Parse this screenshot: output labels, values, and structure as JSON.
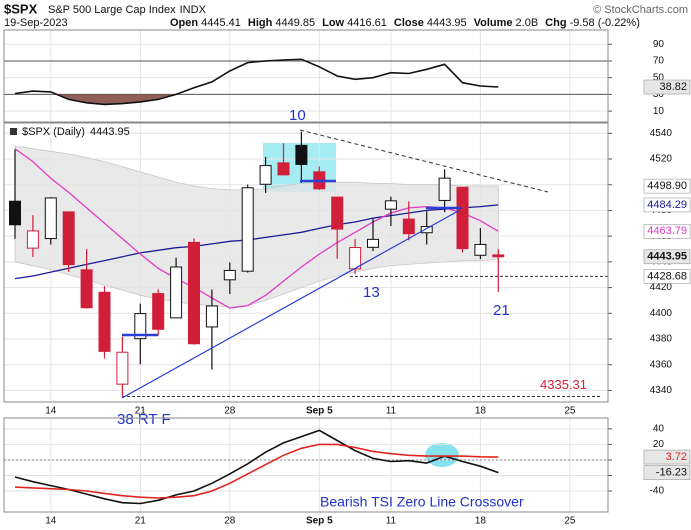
{
  "header": {
    "symbol": "$SPX",
    "name": "S&P 500 Large Cap Index",
    "exchange": "INDX",
    "date": "19-Sep-2023",
    "copyright": "© StockCharts.com",
    "quote": [
      {
        "label": "Open",
        "value": "4445.41"
      },
      {
        "label": "High",
        "value": "4449.85"
      },
      {
        "label": "Low",
        "value": "4416.61"
      },
      {
        "label": "Close",
        "value": "4443.95"
      },
      {
        "label": "Volume",
        "value": "2.0B"
      },
      {
        "label": "Chg",
        "value": "-9.58 (-0.22%)"
      }
    ]
  },
  "chart_data": [
    {
      "type": "line",
      "ylim": [
        -3,
        107
      ],
      "yticks": [
        90,
        70,
        50,
        30,
        10
      ],
      "reference_lines": [
        70,
        30
      ],
      "fills": {
        "below": 30,
        "below_color": "#8f5f58",
        "above": 70,
        "above_color": "#9aa8b4"
      },
      "series": [
        {
          "color": "#111111",
          "values": [
            31,
            34,
            33,
            24,
            20,
            18,
            19,
            21,
            24,
            30,
            38,
            45,
            58,
            68,
            70,
            71,
            72,
            63,
            52,
            48,
            50,
            56,
            55,
            60,
            66,
            44,
            40,
            38.82,
            null,
            null,
            null,
            null,
            null,
            null
          ]
        }
      ]
    },
    {
      "type": "candlestick",
      "title": "$SPX (Daily)",
      "ylim": [
        4331,
        4548
      ],
      "yticks": [
        4540,
        4520,
        4500,
        4480,
        4460,
        4440,
        4420,
        4400,
        4380,
        4360,
        4340
      ],
      "categories": [
        null,
        null,
        "14",
        null,
        null,
        null,
        null,
        "21",
        null,
        null,
        null,
        null,
        "28",
        null,
        null,
        null,
        null,
        "Sep 5",
        null,
        null,
        null,
        "11",
        null,
        null,
        null,
        null,
        "18",
        null,
        null,
        null,
        null,
        "25",
        null,
        null
      ],
      "up_color": "#111111",
      "down_color": "#d11f3a",
      "open": [
        4487.16,
        4450.69,
        4458.13,
        4478.87,
        4433.79,
        4416.32,
        4344.88,
        4380.28,
        4415.33,
        4396.44,
        4455.16,
        4389.38,
        4426.03,
        4432.75,
        4500.34,
        4517.01,
        4530.6,
        4510.06,
        4490.35,
        4434.55,
        4451.3,
        4480.98,
        4473.27,
        4462.65,
        4487.78,
        4497.98,
        4445.13,
        4445.41,
        null,
        null,
        null,
        null,
        null,
        null
      ],
      "high": [
        4527.37,
        4476.23,
        4490.33,
        4478.87,
        4449.95,
        4421.17,
        4381.82,
        4407.55,
        4418.59,
        4443.18,
        4458.3,
        4418.46,
        4439.56,
        4500.14,
        4521.65,
        4532.26,
        4541.25,
        4514.29,
        4490.35,
        4457.81,
        4473.53,
        4490.77,
        4487.11,
        4479.39,
        4511.99,
        4497.98,
        4466.36,
        4449.85,
        null,
        null,
        null,
        null,
        null,
        null
      ],
      "low": [
        4457.92,
        4443.98,
        4453.44,
        4432.19,
        4403.55,
        4364.8,
        4335.31,
        4360.3,
        4382.77,
        4396.44,
        4375.55,
        4356.29,
        4414.98,
        4431.68,
        4493.59,
        4507.39,
        4501.35,
        4496.01,
        4442.38,
        4430.46,
        4448.38,
        4467.89,
        4456.83,
        4453.52,
        4478.69,
        4447.21,
        4442.11,
        4416.61,
        null,
        null,
        null,
        null,
        null,
        null
      ],
      "close": [
        4468.83,
        4464.05,
        4489.72,
        4437.86,
        4404.33,
        4370.36,
        4369.71,
        4399.77,
        4387.55,
        4436.01,
        4376.31,
        4405.71,
        4433.31,
        4497.63,
        4514.87,
        4507.66,
        4515.77,
        4496.83,
        4465.48,
        4451.14,
        4457.49,
        4487.46,
        4461.9,
        4467.44,
        4505.1,
        4450.32,
        4453.53,
        4443.95,
        null,
        null,
        null,
        null,
        null,
        null
      ],
      "bands": {
        "color": "#e4e4e4",
        "upper": [
          4530,
          4528,
          4526,
          4524,
          4521,
          4518,
          4514,
          4510,
          4506,
          4502,
          4499,
          4497,
          4496,
          4496,
          4497,
          4499,
          4501,
          4502,
          4502,
          4502,
          4501,
          4501,
          4500,
          4500,
          4500,
          4499,
          4499,
          4498.9,
          null,
          null,
          null,
          null,
          null,
          null
        ],
        "upper_last_label": "4498.90",
        "lower": [
          4440,
          4437,
          4434,
          4430,
          4426,
          4422,
          4418,
          4414,
          4411,
          4409,
          4407,
          4406,
          4405,
          4406,
          4410,
          4415,
          4420,
          4425,
          4429,
          4432,
          4435,
          4437,
          4438,
          4439,
          4440,
          4441,
          4441,
          4442,
          null,
          null,
          null,
          null,
          null,
          null
        ]
      },
      "lines": [
        {
          "color": "#1c1c96",
          "values": [
            4427,
            4429,
            4432,
            4435,
            4438,
            4441,
            4444,
            4447,
            4449,
            4451,
            4452,
            4454,
            4456,
            4457,
            4459,
            4461,
            4463,
            4466,
            4469,
            4471,
            4474,
            4476,
            4478,
            4480,
            4481,
            4482,
            4483,
            4484.29,
            null,
            null,
            null,
            null,
            null,
            null
          ]
        },
        {
          "color": "#e23bc9",
          "values": [
            4528,
            4518,
            4505,
            4494,
            4482,
            4470,
            4458,
            4446,
            4435,
            4427,
            4420,
            4412,
            4404,
            4406,
            4414,
            4425,
            4436,
            4446,
            4455,
            4463,
            4471,
            4478,
            4482,
            4483,
            4482,
            4478,
            4472,
            4463.79,
            null,
            null,
            null,
            null,
            null,
            null
          ]
        }
      ],
      "support_line": 4428.68,
      "low_line": {
        "value": 4335.31,
        "color": "#d11f3a"
      },
      "annotations": [
        "10",
        "13",
        "21",
        "38 RT F"
      ]
    },
    {
      "type": "line",
      "ylim": [
        -67,
        54
      ],
      "yticks": [
        40,
        20,
        0,
        -20,
        -40
      ],
      "reference_lines": [
        0
      ],
      "series": [
        {
          "color": "#111111",
          "values": [
            -22,
            -28,
            -33,
            -38,
            -44,
            -50,
            -55,
            -56,
            -52,
            -45,
            -40,
            -30,
            -18,
            -5,
            10,
            22,
            30,
            38,
            25,
            12,
            2,
            -2,
            -1,
            -4,
            5,
            -2,
            -8,
            -16.23,
            null,
            null,
            null,
            null,
            null,
            null
          ]
        },
        {
          "color": "#e0261f",
          "values": [
            -35,
            -36,
            -37,
            -38,
            -40,
            -43,
            -46,
            -48,
            -49,
            -48,
            -46,
            -40,
            -30,
            -18,
            -6,
            6,
            15,
            20,
            20,
            16,
            11,
            8,
            6,
            5,
            5,
            5,
            4,
            3.72,
            null,
            null,
            null,
            null,
            null,
            null
          ]
        }
      ],
      "annotations": [
        "Bearish TSI Zero Line Crossover"
      ]
    }
  ]
}
